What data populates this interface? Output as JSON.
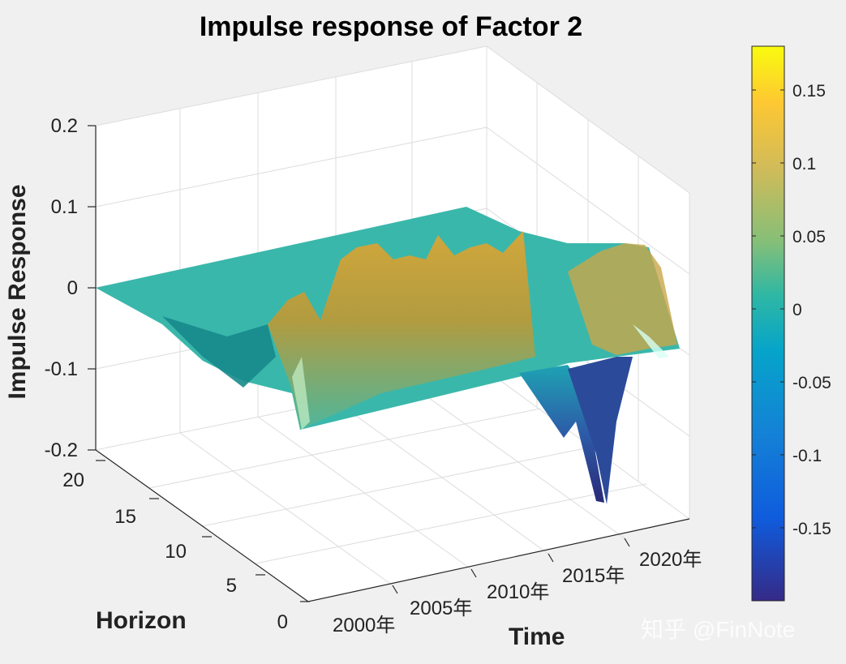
{
  "chart_data": {
    "type": "surface",
    "title": "Impulse response of Factor 2",
    "xlabel": "Time",
    "ylabel": "Horizon",
    "zlabel": "Impulse Response",
    "x_ticks": [
      "2000年",
      "2005年",
      "2010年",
      "2015年",
      "2020年"
    ],
    "y_ticks": [
      "0",
      "5",
      "10",
      "15",
      "20"
    ],
    "z_ticks": [
      "-0.2",
      "-0.1",
      "0",
      "0.1",
      "0.2"
    ],
    "xlim": [
      1996,
      2024
    ],
    "ylim": [
      0,
      20
    ],
    "zlim": [
      -0.2,
      0.2
    ],
    "grid": true,
    "colormap": "parula",
    "colorbar": {
      "range": [
        -0.2,
        0.18
      ],
      "ticks": [
        "0.15",
        "0.1",
        "0.05",
        "0",
        "-0.05",
        "-0.1",
        "-0.15"
      ],
      "tick_values": [
        0.15,
        0.1,
        0.05,
        0,
        -0.05,
        -0.1,
        -0.15
      ]
    },
    "front_edge_horizon0": {
      "x": [
        1996,
        1999,
        2001,
        2002.5,
        2003,
        2004,
        2005,
        2006,
        2007,
        2008,
        2009,
        2010,
        2011,
        2012,
        2013,
        2014,
        2015,
        2016,
        2017,
        2018,
        2019,
        2020,
        2021,
        2022,
        2023
      ],
      "z": [
        0,
        -0.04,
        -0.09,
        -0.08,
        -0.05,
        0.02,
        0.04,
        0.03,
        0.05,
        0.02,
        0.06,
        0.02,
        0.06,
        0.01,
        0.07,
        0.05,
        -0.12,
        -0.05,
        -0.02,
        -0.19,
        -0.03,
        0.02,
        0.04,
        0.03,
        -0.05
      ]
    },
    "back_edge_horizon20": {
      "x": [
        1996,
        2005,
        2010,
        2015,
        2020,
        2023
      ],
      "z": [
        0,
        0.02,
        0.03,
        0.04,
        0.02,
        0.01
      ]
    }
  },
  "watermark": "知乎 @FinNote"
}
